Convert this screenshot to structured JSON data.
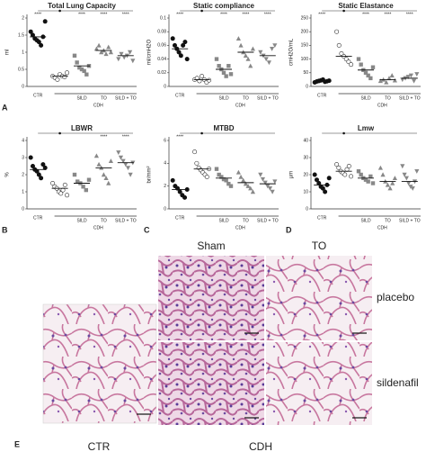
{
  "chart_data": [
    {
      "type": "scatter",
      "title": "Total Lung Capacity",
      "ylabel": "ml",
      "categories": [
        "CTR",
        null,
        "SILD",
        "TO",
        "SILD + TO"
      ],
      "group_label": "CDH",
      "values": [
        [
          1.6,
          1.5,
          1.4,
          1.35,
          1.3,
          1.2,
          1.45,
          1.9
        ],
        [
          0.3,
          0.25,
          0.2,
          0.35,
          0.3,
          0.28,
          0.4
        ],
        [
          0.9,
          0.7,
          0.55,
          0.5,
          0.45,
          0.35,
          0.6
        ],
        [
          1.1,
          1.2,
          1.0,
          1.05,
          0.95,
          1.15,
          1.0
        ],
        [
          0.8,
          0.95,
          0.85,
          0.9,
          1.0,
          0.75
        ]
      ],
      "means": [
        1.45,
        0.3,
        0.6,
        1.05,
        0.9
      ],
      "ylim": [
        0,
        2
      ],
      "yticks": [
        0,
        0.5,
        1,
        1.5,
        2
      ],
      "annotations": [
        {
          "text": "****",
          "category": 0
        },
        {
          "text": "****",
          "category": 2
        },
        {
          "text": "****",
          "category": 3
        },
        {
          "text": "****",
          "category": 4
        }
      ]
    },
    {
      "type": "scatter",
      "title": "Static compliance",
      "ylabel": "ml/cmH2O",
      "categories": [
        "CTR",
        null,
        "SILD",
        "TO",
        "SILD + TO"
      ],
      "group_label": "CDH",
      "values": [
        [
          0.07,
          0.06,
          0.055,
          0.05,
          0.045,
          0.06,
          0.065,
          0.04
        ],
        [
          0.01,
          0.012,
          0.008,
          0.015,
          0.01,
          0.006,
          0.009
        ],
        [
          0.04,
          0.03,
          0.025,
          0.02,
          0.015,
          0.03,
          0.018
        ],
        [
          0.07,
          0.06,
          0.05,
          0.045,
          0.04,
          0.03,
          0.055
        ],
        [
          0.05,
          0.045,
          0.04,
          0.035,
          0.055,
          0.06
        ]
      ],
      "means": [
        0.055,
        0.01,
        0.025,
        0.05,
        0.045
      ],
      "ylim": [
        0,
        0.1
      ],
      "yticks": [
        0,
        0.02,
        0.04,
        0.06,
        0.08,
        0.1
      ],
      "annotations": [
        {
          "text": "****",
          "category": 0
        },
        {
          "text": "****",
          "category": 2
        },
        {
          "text": "****",
          "category": 3
        },
        {
          "text": "****",
          "category": 4
        }
      ]
    },
    {
      "type": "scatter",
      "title": "Static Elastance",
      "ylabel": "cmH2O/mL",
      "categories": [
        "CTR",
        null,
        "SILD",
        "TO",
        "SILD + TO"
      ],
      "group_label": "CDH",
      "values": [
        [
          15,
          18,
          20,
          22,
          25,
          17,
          19,
          21
        ],
        [
          200,
          150,
          120,
          110,
          100,
          90,
          80
        ],
        [
          100,
          80,
          60,
          50,
          40,
          30,
          70
        ],
        [
          20,
          25,
          15,
          30,
          40,
          22
        ],
        [
          25,
          30,
          35,
          40,
          20,
          45
        ]
      ],
      "means": [
        20,
        110,
        60,
        25,
        30
      ],
      "ylim": [
        0,
        250
      ],
      "yticks": [
        0,
        50,
        100,
        150,
        200,
        250
      ],
      "annotations": [
        {
          "text": "****",
          "category": 0
        },
        {
          "text": "****",
          "category": 2
        },
        {
          "text": "****",
          "category": 3
        },
        {
          "text": "****",
          "category": 4
        }
      ]
    },
    {
      "type": "scatter",
      "title": "LBWR",
      "ylabel": "%",
      "categories": [
        "CTR",
        null,
        "SILD",
        "TO",
        "SILD + TO"
      ],
      "group_label": "CDH",
      "values": [
        [
          3.0,
          2.5,
          2.3,
          2.2,
          2.0,
          1.8,
          2.6,
          2.4
        ],
        [
          1.5,
          1.3,
          1.2,
          1.0,
          0.9,
          1.1,
          1.4,
          0.8
        ],
        [
          2.0,
          1.6,
          1.5,
          1.3,
          1.1,
          1.7
        ],
        [
          3.1,
          2.6,
          2.4,
          2.0,
          1.8,
          1.5,
          2.8
        ],
        [
          3.3,
          3.0,
          2.8,
          2.6,
          2.4,
          2.0,
          2.7
        ]
      ],
      "means": [
        2.3,
        1.2,
        1.5,
        2.4,
        2.7
      ],
      "ylim": [
        0,
        4
      ],
      "yticks": [
        0,
        1,
        2,
        3,
        4
      ],
      "annotations": [
        {
          "text": "****",
          "category": 3
        },
        {
          "text": "****",
          "category": 4
        }
      ]
    },
    {
      "type": "scatter",
      "title": "MTBD",
      "ylabel": "br/mm²",
      "categories": [
        "CTR",
        null,
        "SILD",
        "TO",
        "SILD + TO"
      ],
      "group_label": "CDH",
      "values": [
        [
          2.5,
          2.0,
          1.8,
          1.5,
          1.2,
          1.0,
          1.7
        ],
        [
          5.0,
          4.0,
          3.6,
          3.4,
          3.2,
          3.0,
          2.8,
          3.5
        ],
        [
          3.5,
          3.0,
          2.8,
          2.6,
          2.5,
          2.2,
          2.0
        ],
        [
          3.2,
          2.8,
          2.5,
          2.2,
          2.0,
          1.8,
          1.5
        ],
        [
          3.0,
          2.6,
          2.3,
          2.0,
          1.8,
          1.5,
          2.4
        ]
      ],
      "means": [
        1.7,
        3.5,
        2.7,
        2.3,
        2.2
      ],
      "ylim": [
        0,
        6
      ],
      "yticks": [
        0,
        2,
        4,
        6
      ],
      "annotations": [
        {
          "text": "****",
          "category": 0
        }
      ]
    },
    {
      "type": "scatter",
      "title": "Lmw",
      "ylabel": "µm",
      "categories": [
        "CTR",
        null,
        "SILD",
        "TO",
        "SILD + TO"
      ],
      "group_label": "CDH",
      "values": [
        [
          20,
          17,
          15,
          13,
          12,
          10,
          14,
          18
        ],
        [
          26,
          24,
          22,
          21,
          20,
          23,
          25,
          19
        ],
        [
          22,
          20,
          18,
          17,
          16,
          19,
          15
        ],
        [
          24,
          20,
          16,
          14,
          12,
          15,
          18
        ],
        [
          25,
          20,
          18,
          15,
          13,
          12,
          16,
          22
        ]
      ],
      "means": [
        14,
        22,
        18,
        16,
        16
      ],
      "ylim": [
        0,
        40
      ],
      "yticks": [
        0,
        10,
        20,
        30,
        40
      ],
      "annotations": []
    }
  ],
  "panel_labels": [
    "A",
    "B",
    "C",
    "D",
    "E"
  ],
  "histology": {
    "columns": [
      "Sham",
      "TO"
    ],
    "rows": [
      "placebo",
      "sildenafil"
    ],
    "groups": [
      "CTR",
      "CDH"
    ]
  }
}
